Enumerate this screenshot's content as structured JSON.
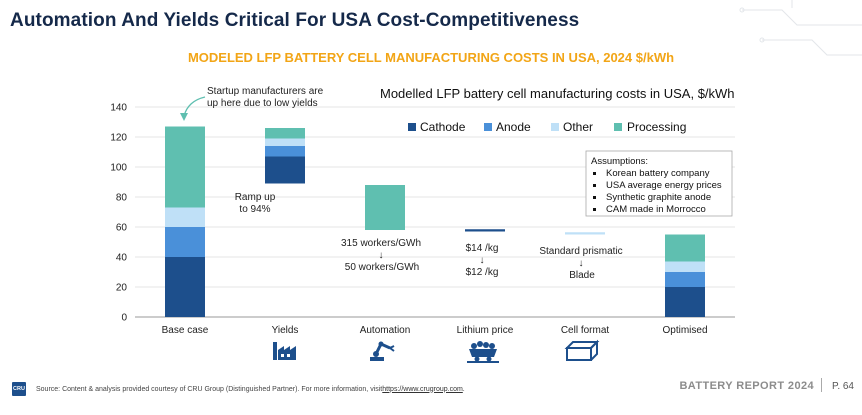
{
  "page": {
    "title": "Automation And Yields Critical For USA Cost-Competitiveness",
    "subtitle": "MODELED LFP BATTERY CELL MANUFACTURING COSTS IN USA, 2024 $/kWh"
  },
  "chart_data": {
    "type": "bar",
    "subtype": "waterfall",
    "title": "Modelled LFP battery cell manufacturing costs in USA, $/kWh",
    "categories": [
      "Base case",
      "Yields",
      "Automation",
      "Lithium price",
      "Cell format",
      "Optimised"
    ],
    "ylim": [
      0,
      140
    ],
    "yticks": [
      0,
      20,
      40,
      60,
      80,
      100,
      120,
      140
    ],
    "grid": true,
    "legend_position": "top-right",
    "series": [
      {
        "name": "Cathode",
        "color": "#1d4f8c",
        "values": [
          40,
          18,
          0,
          1.5,
          0,
          20
        ]
      },
      {
        "name": "Anode",
        "color": "#4a90d9",
        "values": [
          20,
          7,
          0,
          0,
          0,
          10
        ]
      },
      {
        "name": "Other",
        "color": "#bfe0f7",
        "values": [
          13,
          5,
          0,
          0,
          1.5,
          7
        ]
      },
      {
        "name": "Processing",
        "color": "#5fbfb0",
        "values": [
          54,
          7,
          30,
          0,
          0,
          18
        ]
      }
    ],
    "bases": [
      0,
      89,
      58,
      57,
      55,
      0
    ],
    "annotations": {
      "startup": [
        "Startup manufacturers are",
        "up here due to low yields"
      ],
      "yields": [
        "Ramp up",
        "to 94%"
      ],
      "automation_from": "315 workers/GWh",
      "automation_to": "50 workers/GWh",
      "lithium_from": "$14 /kg",
      "lithium_to": "$12 /kg",
      "cell_from": "Standard prismatic",
      "cell_to": "Blade",
      "arrow": "↓"
    },
    "assumptions": {
      "heading": "Assumptions:",
      "items": [
        "Korean battery company",
        "USA average energy prices",
        "Synthetic graphite anode",
        "CAM made in Morrocco"
      ]
    }
  },
  "icons": [
    "factory-icon",
    "robot-arm-icon",
    "mining-cart-icon",
    "battery-cell-icon"
  ],
  "footer": {
    "logo_text": "CRU",
    "source_text": "Source: Content & analysis provided courtesy of CRU Group (Distinguished Partner). For more information, visit ",
    "source_link": "https://www.crugroup.com",
    "source_end": ".",
    "report": "BATTERY REPORT 2024",
    "page": "P. 64"
  }
}
